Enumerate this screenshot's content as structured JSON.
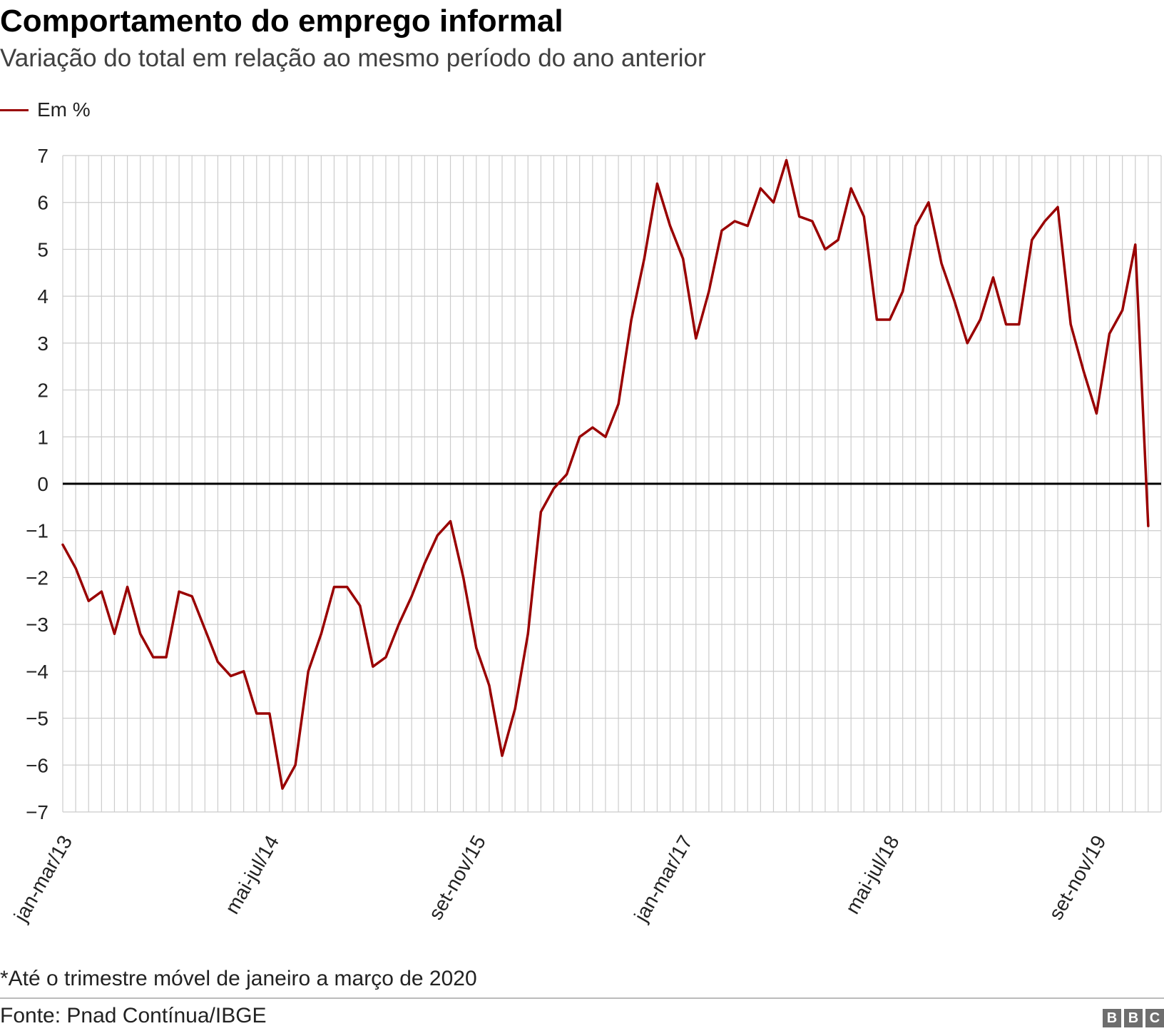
{
  "header": {
    "title": "Comportamento do emprego informal",
    "subtitle": "Variação do total em relação ao mesmo período do ano anterior"
  },
  "legend": {
    "label": "Em %",
    "color": "#990000"
  },
  "footer": {
    "note": "*Até o trimestre móvel de janeiro a março de 2020",
    "source": "Fonte: Pnad Contínua/IBGE",
    "logo_letters": [
      "B",
      "B",
      "C"
    ]
  },
  "chart_data": {
    "type": "line",
    "title": "Comportamento do emprego informal",
    "subtitle": "Variação do total em relação ao mesmo período do ano anterior",
    "xlabel": "",
    "ylabel": "",
    "ylim": [
      -7,
      7
    ],
    "yticks": [
      7,
      6,
      5,
      4,
      3,
      2,
      1,
      0,
      -1,
      -2,
      -3,
      -4,
      -5,
      -6,
      -7
    ],
    "ytick_labels": [
      "7",
      "6",
      "5",
      "4",
      "3",
      "2",
      "1",
      "0",
      "−1",
      "−2",
      "−3",
      "−4",
      "−5",
      "−6",
      "−7"
    ],
    "xtick_labels": [
      {
        "index": 0,
        "label": "jan-mar/13"
      },
      {
        "index": 16,
        "label": "mai-jul/14"
      },
      {
        "index": 32,
        "label": "set-nov/15"
      },
      {
        "index": 48,
        "label": "jan-mar/17"
      },
      {
        "index": 64,
        "label": "mai-jul/18"
      },
      {
        "index": 80,
        "label": "set-nov/19"
      }
    ],
    "grid": true,
    "zero_line": true,
    "legend_position": "top-left",
    "series": [
      {
        "name": "Em %",
        "color": "#990000",
        "values": [
          -1.3,
          -1.8,
          -2.5,
          -2.3,
          -3.2,
          -2.2,
          -3.2,
          -3.7,
          -3.7,
          -2.3,
          -2.4,
          -3.1,
          -3.8,
          -4.1,
          -4.0,
          -4.9,
          -4.9,
          -6.5,
          -6.0,
          -4.0,
          -3.2,
          -2.2,
          -2.2,
          -2.6,
          -3.9,
          -3.7,
          -3.0,
          -2.4,
          -1.7,
          -1.1,
          -0.8,
          -2.0,
          -3.5,
          -4.3,
          -5.8,
          -4.8,
          -3.2,
          -0.6,
          -0.1,
          0.2,
          1.0,
          1.2,
          1.0,
          1.7,
          3.5,
          4.8,
          6.4,
          5.5,
          4.8,
          3.1,
          4.1,
          5.4,
          5.6,
          5.5,
          6.3,
          6.0,
          6.9,
          5.7,
          5.6,
          5.0,
          5.2,
          6.3,
          5.7,
          3.5,
          3.5,
          4.1,
          5.5,
          6.0,
          4.7,
          3.9,
          3.0,
          3.5,
          4.4,
          3.4,
          3.4,
          5.2,
          5.6,
          5.9,
          3.4,
          2.4,
          1.5,
          3.2,
          3.7,
          5.1,
          -0.9
        ]
      }
    ]
  }
}
